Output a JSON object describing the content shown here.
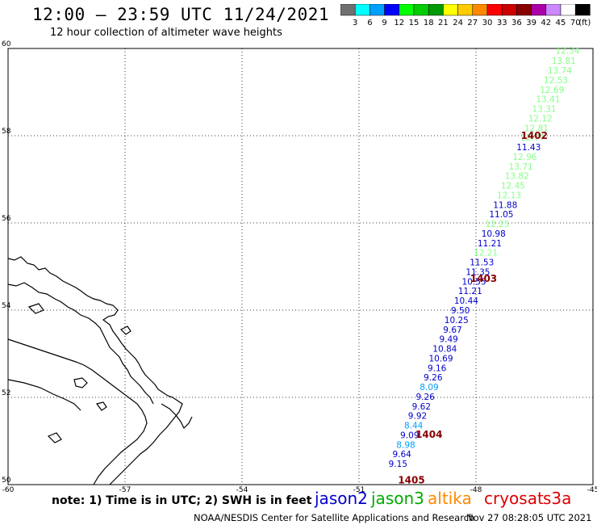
{
  "header": {
    "title": "12:00 – 23:59 UTC 11/24/2021",
    "subtitle": "12 hour collection of altimeter wave heights"
  },
  "colorbar": {
    "swatches": [
      "#707070",
      "#00ffff",
      "#00a0ff",
      "#0000ff",
      "#00ff00",
      "#00cc00",
      "#009900",
      "#ffff00",
      "#ffcc00",
      "#ff8800",
      "#ff0000",
      "#cc0000",
      "#880000",
      "#aa00aa",
      "#cc88ff",
      "#ffffff",
      "#000000"
    ],
    "labels": [
      "3",
      "6",
      "9",
      "12",
      "15",
      "18",
      "21",
      "24",
      "27",
      "30",
      "33",
      "36",
      "39",
      "42",
      "45",
      "70"
    ],
    "unit": "(ft)"
  },
  "axes": {
    "lat_labels": [
      "60",
      "58",
      "56",
      "54",
      "52",
      "50"
    ],
    "lon_labels": [
      "-60",
      "-57",
      "-54",
      "-51",
      "-48",
      "-45"
    ]
  },
  "passes": [
    {
      "label": "1402",
      "lat": 58.0,
      "lon": -46.85
    },
    {
      "label": "1403",
      "lat": 54.72,
      "lon": -48.15
    },
    {
      "label": "1404",
      "lat": 51.15,
      "lon": -49.55
    },
    {
      "label": "1405",
      "lat": 50.1,
      "lon": -50.0
    }
  ],
  "track": [
    {
      "v": "12.34",
      "lat": 59.95,
      "lon": -45.65,
      "c": "#88ff88"
    },
    {
      "v": "13.81",
      "lat": 59.72,
      "lon": -45.75,
      "c": "#88ff88"
    },
    {
      "v": "13.74",
      "lat": 59.5,
      "lon": -45.85,
      "c": "#88ff88"
    },
    {
      "v": "12.53",
      "lat": 59.28,
      "lon": -45.95,
      "c": "#88ff88"
    },
    {
      "v": "12.69",
      "lat": 59.06,
      "lon": -46.05,
      "c": "#88ff88"
    },
    {
      "v": "13.41",
      "lat": 58.84,
      "lon": -46.15,
      "c": "#88ff88"
    },
    {
      "v": "13.31",
      "lat": 58.62,
      "lon": -46.25,
      "c": "#88ff88"
    },
    {
      "v": "12.12",
      "lat": 58.4,
      "lon": -46.35,
      "c": "#88ff88"
    },
    {
      "v": "12.81",
      "lat": 58.18,
      "lon": -46.45,
      "c": "#88ff88"
    },
    {
      "v": "12.77",
      "lat": 57.96,
      "lon": -46.55,
      "c": "#88ff88"
    },
    {
      "v": "11.43",
      "lat": 57.74,
      "lon": -46.65,
      "c": "#0000cc"
    },
    {
      "v": "12.96",
      "lat": 57.52,
      "lon": -46.75,
      "c": "#88ff88"
    },
    {
      "v": "13.71",
      "lat": 57.3,
      "lon": -46.85,
      "c": "#88ff88"
    },
    {
      "v": "13.82",
      "lat": 57.08,
      "lon": -46.95,
      "c": "#88ff88"
    },
    {
      "v": "12.45",
      "lat": 56.86,
      "lon": -47.05,
      "c": "#88ff88"
    },
    {
      "v": "12.13",
      "lat": 56.64,
      "lon": -47.15,
      "c": "#88ff88"
    },
    {
      "v": "11.88",
      "lat": 56.42,
      "lon": -47.25,
      "c": "#0000cc"
    },
    {
      "v": "11.05",
      "lat": 56.2,
      "lon": -47.35,
      "c": "#0000cc"
    },
    {
      "v": "12.25",
      "lat": 55.98,
      "lon": -47.45,
      "c": "#88ff88"
    },
    {
      "v": "10.98",
      "lat": 55.76,
      "lon": -47.55,
      "c": "#0000cc"
    },
    {
      "v": "11.21",
      "lat": 55.54,
      "lon": -47.65,
      "c": "#0000cc"
    },
    {
      "v": "12.21",
      "lat": 55.32,
      "lon": -47.75,
      "c": "#88ff88"
    },
    {
      "v": "11.53",
      "lat": 55.1,
      "lon": -47.85,
      "c": "#0000cc"
    },
    {
      "v": "11.35",
      "lat": 54.88,
      "lon": -47.95,
      "c": "#0000cc"
    },
    {
      "v": "10.55",
      "lat": 54.66,
      "lon": -48.05,
      "c": "#0000cc"
    },
    {
      "v": "11.21",
      "lat": 54.44,
      "lon": -48.15,
      "c": "#0000cc"
    },
    {
      "v": "10.44",
      "lat": 54.22,
      "lon": -48.25,
      "c": "#0000cc"
    },
    {
      "v": "9.50",
      "lat": 54.0,
      "lon": -48.4,
      "c": "#0000cc"
    },
    {
      "v": "10.25",
      "lat": 53.78,
      "lon": -48.5,
      "c": "#0000cc"
    },
    {
      "v": "9.67",
      "lat": 53.56,
      "lon": -48.6,
      "c": "#0000cc"
    },
    {
      "v": "9.49",
      "lat": 53.34,
      "lon": -48.7,
      "c": "#0000cc"
    },
    {
      "v": "10.84",
      "lat": 53.12,
      "lon": -48.8,
      "c": "#0000cc"
    },
    {
      "v": "10.69",
      "lat": 52.9,
      "lon": -48.9,
      "c": "#0000cc"
    },
    {
      "v": "9.16",
      "lat": 52.68,
      "lon": -49.0,
      "c": "#0000cc"
    },
    {
      "v": "9.26",
      "lat": 52.46,
      "lon": -49.1,
      "c": "#0000cc"
    },
    {
      "v": "8.09",
      "lat": 52.24,
      "lon": -49.2,
      "c": "#00a0ff"
    },
    {
      "v": "9.26",
      "lat": 52.02,
      "lon": -49.3,
      "c": "#0000cc"
    },
    {
      "v": "9.62",
      "lat": 51.8,
      "lon": -49.4,
      "c": "#0000cc"
    },
    {
      "v": "9.92",
      "lat": 51.58,
      "lon": -49.5,
      "c": "#0000cc"
    },
    {
      "v": "8.44",
      "lat": 51.36,
      "lon": -49.6,
      "c": "#00a0ff"
    },
    {
      "v": "9.09",
      "lat": 51.14,
      "lon": -49.7,
      "c": "#0000cc"
    },
    {
      "v": "8.98",
      "lat": 50.92,
      "lon": -49.8,
      "c": "#00a0ff"
    },
    {
      "v": "9.64",
      "lat": 50.7,
      "lon": -49.9,
      "c": "#0000cc"
    },
    {
      "v": "9.15",
      "lat": 50.48,
      "lon": -50.0,
      "c": "#0000cc"
    }
  ],
  "footer": {
    "note": "note: 1) Time is in UTC; 2) SWH is in feet",
    "satellites": {
      "jason2": "jason2",
      "jason3": "jason3",
      "altika": "altika",
      "cryosat": "cryosat",
      "s3a": "s3a"
    },
    "credit": "NOAA/NESDIS Center for Satellite Applications and Research",
    "timestamp": "Nov 27 08:28:05 UTC 2021"
  }
}
